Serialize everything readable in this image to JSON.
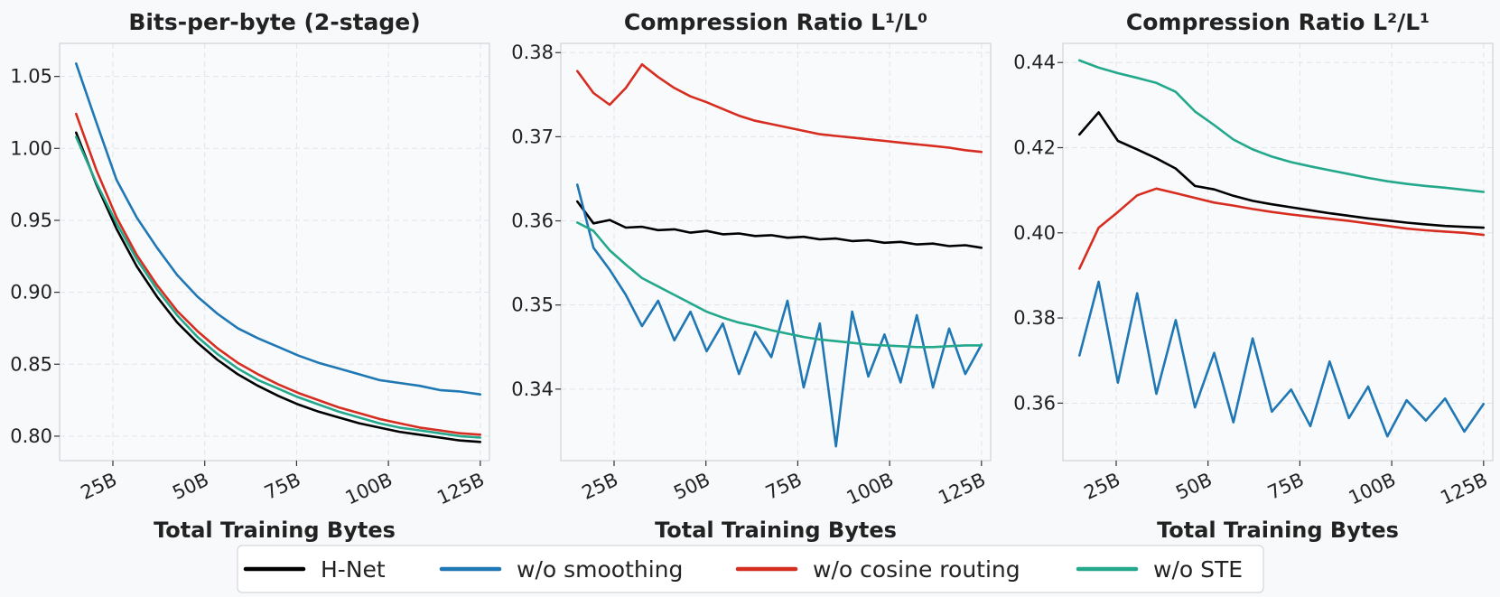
{
  "legend": [
    {
      "name": "H-Net",
      "color": "#000000"
    },
    {
      "name": "w/o smoothing",
      "color": "#1f77b4"
    },
    {
      "name": "w/o cosine routing",
      "color": "#d62d20"
    },
    {
      "name": "w/o STE",
      "color": "#23a88c"
    }
  ],
  "chart_data": [
    {
      "type": "line",
      "title": "Bits-per-byte (2-stage)",
      "xlabel": "Total Training Bytes",
      "ylabel": "",
      "xlim": [
        10.5,
        127.5
      ],
      "ylim": [
        0.783,
        1.073
      ],
      "xticks": [
        25,
        50,
        75,
        100,
        125
      ],
      "xticklabels": [
        "25B",
        "50B",
        "75B",
        "100B",
        "125B"
      ],
      "yticks": [
        0.8,
        0.85,
        0.9,
        0.95,
        1.0,
        1.05
      ],
      "yticklabels": [
        "0.80",
        "0.85",
        "0.90",
        "0.95",
        "1.00",
        "1.05"
      ],
      "grid": true,
      "x_range": [
        15,
        125
      ],
      "series": [
        {
          "name": "H-Net",
          "color": "#000000",
          "values": [
            1.011,
            0.975,
            0.944,
            0.918,
            0.897,
            0.879,
            0.865,
            0.853,
            0.843,
            0.835,
            0.828,
            0.822,
            0.817,
            0.813,
            0.809,
            0.806,
            0.803,
            0.801,
            0.799,
            0.797,
            0.796
          ]
        },
        {
          "name": "w/o smoothing",
          "color": "#1f77b4",
          "values": [
            1.059,
            1.018,
            0.978,
            0.952,
            0.931,
            0.912,
            0.897,
            0.885,
            0.875,
            0.868,
            0.862,
            0.856,
            0.851,
            0.847,
            0.843,
            0.839,
            0.837,
            0.835,
            0.832,
            0.831,
            0.829
          ]
        },
        {
          "name": "w/o cosine routing",
          "color": "#d62d20",
          "values": [
            1.024,
            0.985,
            0.952,
            0.926,
            0.905,
            0.887,
            0.873,
            0.861,
            0.851,
            0.843,
            0.836,
            0.83,
            0.825,
            0.82,
            0.816,
            0.812,
            0.809,
            0.806,
            0.804,
            0.802,
            0.801
          ]
        },
        {
          "name": "w/o STE",
          "color": "#23a88c",
          "values": [
            1.008,
            0.976,
            0.948,
            0.923,
            0.902,
            0.884,
            0.869,
            0.857,
            0.847,
            0.839,
            0.833,
            0.827,
            0.822,
            0.817,
            0.813,
            0.809,
            0.806,
            0.804,
            0.802,
            0.8,
            0.799
          ]
        }
      ]
    },
    {
      "type": "line",
      "title": "Compression Ratio L¹/L⁰",
      "xlabel": "Total Training Bytes",
      "ylabel": "",
      "xlim": [
        10.5,
        127.5
      ],
      "ylim": [
        0.3315,
        0.3811
      ],
      "xticks": [
        25,
        50,
        75,
        100,
        125
      ],
      "xticklabels": [
        "25B",
        "50B",
        "75B",
        "100B",
        "125B"
      ],
      "yticks": [
        0.34,
        0.35,
        0.36,
        0.37,
        0.38
      ],
      "yticklabels": [
        "0.34",
        "0.35",
        "0.36",
        "0.37",
        "0.38"
      ],
      "grid": true,
      "x_range": [
        15,
        125
      ],
      "series": [
        {
          "name": "H-Net",
          "color": "#000000",
          "values": [
            0.3623,
            0.3597,
            0.3601,
            0.3592,
            0.3593,
            0.3589,
            0.359,
            0.3586,
            0.3588,
            0.3584,
            0.3585,
            0.3582,
            0.3583,
            0.358,
            0.3581,
            0.3578,
            0.3579,
            0.3576,
            0.3577,
            0.3574,
            0.3575,
            0.3572,
            0.3573,
            0.357,
            0.3571,
            0.3568
          ]
        },
        {
          "name": "w/o smoothing",
          "color": "#1f77b4",
          "values": [
            0.3643,
            0.3568,
            0.3542,
            0.3512,
            0.3475,
            0.3505,
            0.3458,
            0.3492,
            0.3445,
            0.3478,
            0.3418,
            0.3468,
            0.3438,
            0.3505,
            0.3402,
            0.3478,
            0.3332,
            0.3492,
            0.3415,
            0.3465,
            0.3408,
            0.3488,
            0.3402,
            0.3472,
            0.3418,
            0.3453
          ]
        },
        {
          "name": "w/o cosine routing",
          "color": "#d62d20",
          "values": [
            0.3778,
            0.3752,
            0.3738,
            0.3758,
            0.3786,
            0.3771,
            0.3758,
            0.3748,
            0.3741,
            0.3733,
            0.3725,
            0.3719,
            0.3715,
            0.3711,
            0.3707,
            0.3703,
            0.3701,
            0.3699,
            0.3697,
            0.3695,
            0.3693,
            0.3691,
            0.3689,
            0.3687,
            0.3684,
            0.3682
          ]
        },
        {
          "name": "w/o STE",
          "color": "#23a88c",
          "values": [
            0.3598,
            0.3588,
            0.3565,
            0.3548,
            0.3532,
            0.3522,
            0.3512,
            0.3502,
            0.3492,
            0.3485,
            0.3479,
            0.3475,
            0.347,
            0.3466,
            0.3462,
            0.3459,
            0.3457,
            0.3455,
            0.3453,
            0.3452,
            0.3451,
            0.345,
            0.345,
            0.3451,
            0.3452,
            0.3452
          ]
        }
      ]
    },
    {
      "type": "line",
      "title": "Compression Ratio L²/L¹",
      "xlabel": "Total Training Bytes",
      "ylabel": "",
      "xlim": [
        10.5,
        127.5
      ],
      "ylim": [
        0.3465,
        0.4445
      ],
      "xticks": [
        25,
        50,
        75,
        100,
        125
      ],
      "xticklabels": [
        "25B",
        "50B",
        "75B",
        "100B",
        "125B"
      ],
      "yticks": [
        0.36,
        0.38,
        0.4,
        0.42,
        0.44
      ],
      "yticklabels": [
        "0.36",
        "0.38",
        "0.40",
        "0.42",
        "0.44"
      ],
      "grid": true,
      "x_range": [
        15,
        125
      ],
      "series": [
        {
          "name": "H-Net",
          "color": "#000000",
          "values": [
            0.4231,
            0.4283,
            0.4216,
            0.4196,
            0.4175,
            0.4151,
            0.411,
            0.4102,
            0.4087,
            0.4075,
            0.4067,
            0.406,
            0.4053,
            0.4046,
            0.404,
            0.4034,
            0.4029,
            0.4024,
            0.402,
            0.4016,
            0.4014,
            0.4012
          ]
        },
        {
          "name": "w/o smoothing",
          "color": "#1f77b4",
          "values": [
            0.3712,
            0.3885,
            0.3648,
            0.3858,
            0.3622,
            0.3795,
            0.359,
            0.3718,
            0.3555,
            0.3752,
            0.358,
            0.3632,
            0.3546,
            0.3698,
            0.3565,
            0.3639,
            0.3522,
            0.3607,
            0.3559,
            0.3611,
            0.3533,
            0.3598
          ]
        },
        {
          "name": "w/o cosine routing",
          "color": "#d62d20",
          "values": [
            0.3916,
            0.4012,
            0.4049,
            0.4088,
            0.4104,
            0.4093,
            0.4082,
            0.4071,
            0.4064,
            0.4056,
            0.4049,
            0.4043,
            0.4038,
            0.4033,
            0.4028,
            0.4022,
            0.4016,
            0.401,
            0.4006,
            0.4003,
            0.4,
            0.3995
          ]
        },
        {
          "name": "w/o STE",
          "color": "#23a88c",
          "values": [
            0.4405,
            0.4388,
            0.4375,
            0.4364,
            0.4352,
            0.4331,
            0.4285,
            0.4253,
            0.4219,
            0.4196,
            0.4179,
            0.4166,
            0.4156,
            0.4147,
            0.4138,
            0.4129,
            0.4121,
            0.4115,
            0.411,
            0.4106,
            0.4101,
            0.4096
          ]
        }
      ]
    }
  ]
}
